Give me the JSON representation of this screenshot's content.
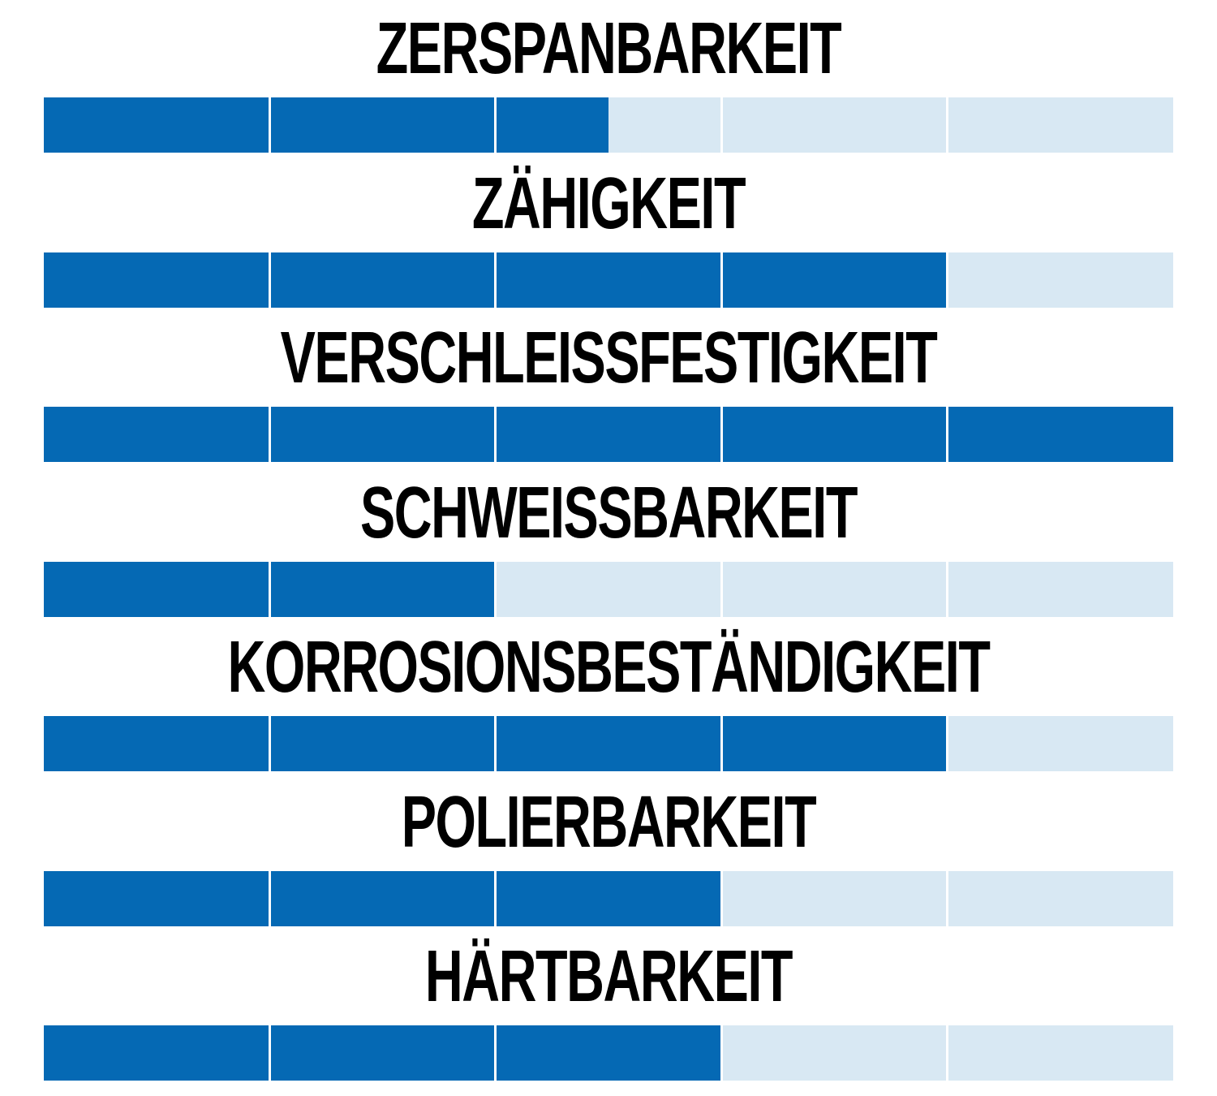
{
  "chart_data": {
    "type": "bar",
    "scale_max": 5,
    "categories": [
      "ZERSPANBARKEIT",
      "ZÄHIGKEIT",
      "VERSCHLEISSFESTIGKEIT",
      "SCHWEISSBARKEIT",
      "KORROSIONSBESTÄNDIGKEIT",
      "POLIERBARKEIT",
      "HÄRTBARKEIT"
    ],
    "values": [
      2.5,
      4,
      5,
      2,
      4,
      3,
      3
    ],
    "colors": {
      "filled": "#0569b4",
      "empty": "#d8e8f3",
      "label": "#000000"
    }
  }
}
